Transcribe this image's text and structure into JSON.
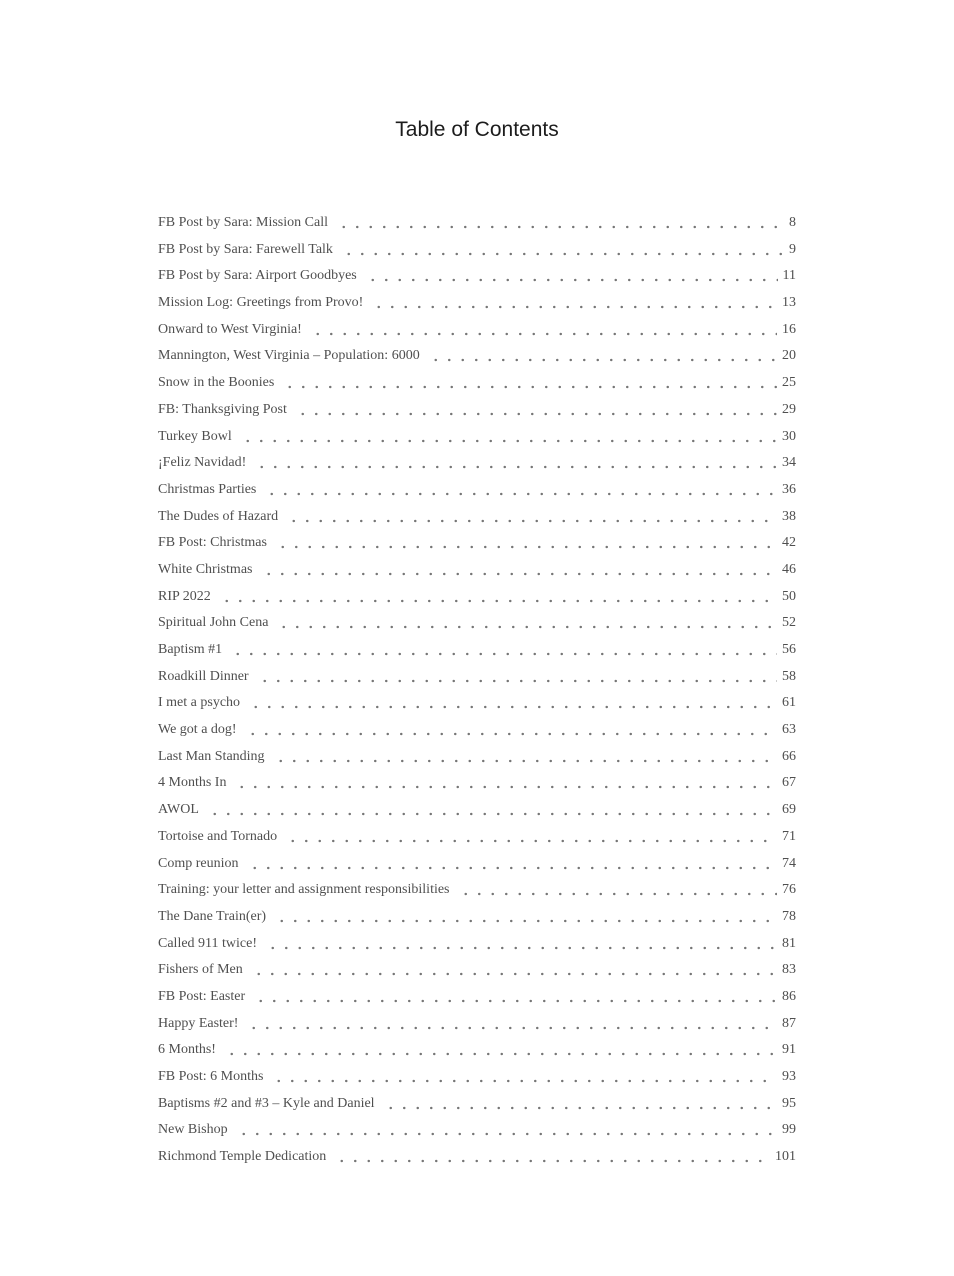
{
  "page": {
    "title": "Table of Contents"
  },
  "toc": {
    "entries": [
      {
        "label": "FB Post by Sara: Mission Call",
        "page": "8"
      },
      {
        "label": "FB Post by Sara: Farewell Talk",
        "page": "9"
      },
      {
        "label": "FB Post by Sara: Airport Goodbyes",
        "page": "11"
      },
      {
        "label": "Mission Log: Greetings from Provo!",
        "page": "13"
      },
      {
        "label": "Onward to West Virginia!",
        "page": "16"
      },
      {
        "label": "Mannington, West Virginia – Population: 6000",
        "page": "20"
      },
      {
        "label": "Snow in the Boonies",
        "page": "25"
      },
      {
        "label": "FB: Thanksgiving Post",
        "page": "29"
      },
      {
        "label": "Turkey Bowl",
        "page": "30"
      },
      {
        "label": "¡Feliz Navidad!",
        "page": "34"
      },
      {
        "label": "Christmas Parties",
        "page": "36"
      },
      {
        "label": "The Dudes of Hazard",
        "page": "38"
      },
      {
        "label": "FB Post: Christmas",
        "page": "42"
      },
      {
        "label": "White Christmas",
        "page": "46"
      },
      {
        "label": "RIP 2022",
        "page": "50"
      },
      {
        "label": "Spiritual John Cena",
        "page": "52"
      },
      {
        "label": "Baptism #1",
        "page": "56"
      },
      {
        "label": "Roadkill Dinner",
        "page": "58"
      },
      {
        "label": "I met a psycho",
        "page": "61"
      },
      {
        "label": "We got a dog!",
        "page": "63"
      },
      {
        "label": "Last Man Standing",
        "page": "66"
      },
      {
        "label": "4 Months In",
        "page": "67"
      },
      {
        "label": "AWOL",
        "page": "69"
      },
      {
        "label": "Tortoise and Tornado",
        "page": "71"
      },
      {
        "label": "Comp reunion",
        "page": "74"
      },
      {
        "label": "Training: your letter and assignment responsibilities",
        "page": "76"
      },
      {
        "label": "The Dane Train(er)",
        "page": "78"
      },
      {
        "label": "Called 911 twice!",
        "page": "81"
      },
      {
        "label": "Fishers of Men",
        "page": "83"
      },
      {
        "label": "FB Post: Easter",
        "page": "86"
      },
      {
        "label": "Happy Easter!",
        "page": "87"
      },
      {
        "label": "6 Months!",
        "page": "91"
      },
      {
        "label": "FB Post: 6 Months",
        "page": "93"
      },
      {
        "label": "Baptisms #2 and #3 – Kyle and Daniel",
        "page": "95"
      },
      {
        "label": "New Bishop",
        "page": "99"
      },
      {
        "label": "Richmond Temple Dedication",
        "page": "101"
      }
    ]
  }
}
